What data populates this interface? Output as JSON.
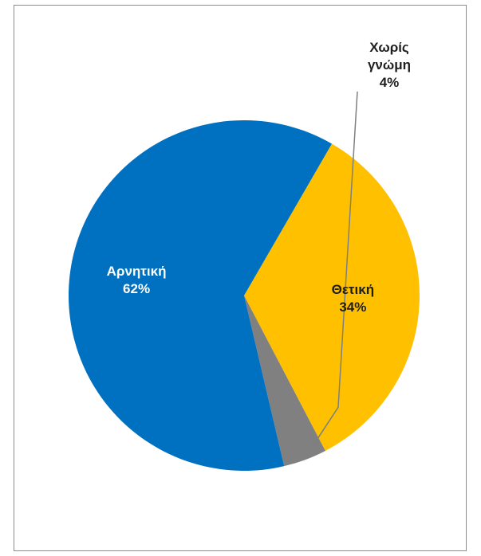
{
  "chart_data": {
    "type": "pie",
    "categories": [
      "Θετική",
      "Χωρίς γνώμη",
      "Αρνητική"
    ],
    "values": [
      34,
      4,
      62
    ],
    "data_labels": [
      {
        "lines": [
          "Θετική",
          "34%"
        ],
        "color": "#1f1f1f",
        "placement": "inside"
      },
      {
        "lines": [
          "Χωρίς",
          "γνώμη",
          "4%"
        ],
        "color": "#1f1f1f",
        "placement": "outside-with-leader"
      },
      {
        "lines": [
          "Αρνητική",
          "62%"
        ],
        "color": "#ffffff",
        "placement": "inside"
      }
    ],
    "colors": [
      "#FFC000",
      "#808080",
      "#0070C0"
    ],
    "start_angle_deg": 30,
    "direction": "clockwise",
    "legend": "none"
  }
}
